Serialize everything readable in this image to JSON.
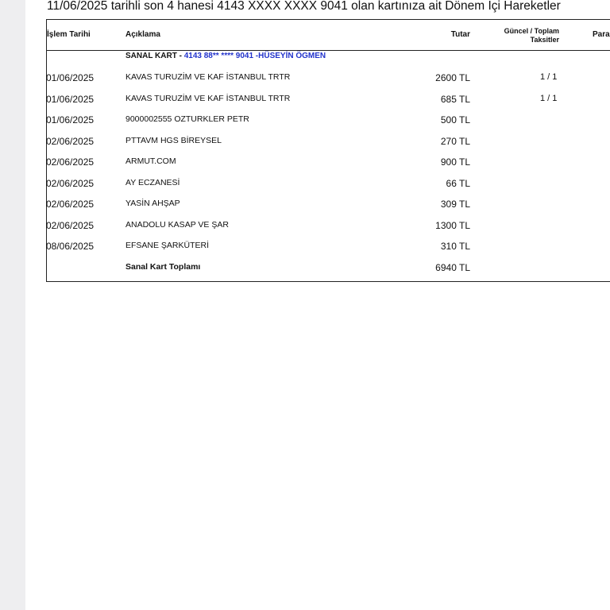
{
  "header": {
    "title": "11/06/2025 tarihli son 4 hanesi 4143 XXXX XXXX 9041 olan kartınıza ait Dönem İçi Hareketler"
  },
  "table": {
    "headers": [
      "İşlem Tarihi",
      "Açıklama",
      "Tutar",
      "Güncel / Toplam Taksitler",
      "Para"
    ],
    "group": {
      "label": "SANAL KART -",
      "card": "4143 88** **** 9041 -HÜSEYİN ÖGMEN"
    },
    "rows": [
      {
        "date": "01/06/2025",
        "description": "KAVAS TURUZİM VE KAF İSTANBUL TRTR",
        "amount": "2600 TL",
        "installment": "1 / 1"
      },
      {
        "date": "01/06/2025",
        "description": "KAVAS TURUZİM VE KAF İSTANBUL TRTR",
        "amount": "685 TL",
        "installment": "1 / 1"
      },
      {
        "date": "01/06/2025",
        "description": "9000002555 OZTURKLER PETR",
        "amount": "500 TL"
      },
      {
        "date": "02/06/2025",
        "description": "PTTAVM HGS BİREYSEL",
        "amount": "270 TL"
      },
      {
        "date": "02/06/2025",
        "description": "ARMUT.COM",
        "amount": "900 TL"
      },
      {
        "date": "02/06/2025",
        "description": "AY ECZANESİ",
        "amount": "66 TL"
      },
      {
        "date": "02/06/2025",
        "description": "YASİN AHŞAP",
        "amount": "309 TL"
      },
      {
        "date": "02/06/2025",
        "description": "ANADOLU KASAP VE ŞAR",
        "amount": "1300 TL"
      },
      {
        "date": "08/06/2025",
        "description": "EFSANE ŞARKÜTERİ",
        "amount": "310 TL"
      }
    ],
    "total": {
      "label": "Sanal Kart Toplamı",
      "amount": "6940 TL"
    }
  }
}
